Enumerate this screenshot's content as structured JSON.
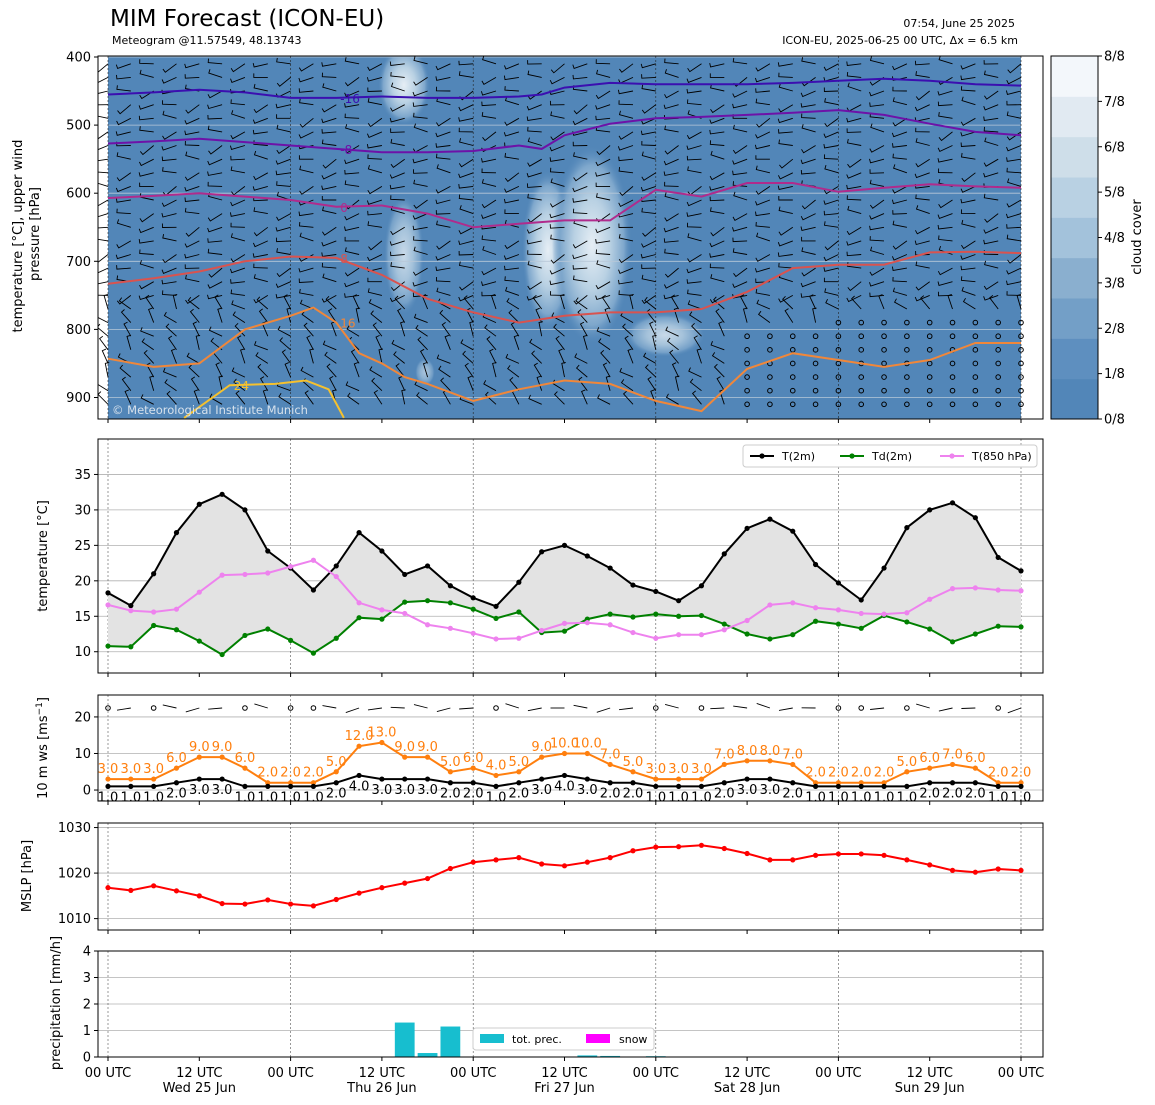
{
  "header": {
    "title": "MIM Forecast (ICON-EU)",
    "subtitle": "Meteogram @11.57549, 48.13743",
    "init_time": "07:54, June 25 2025",
    "model_info": "ICON-EU, 2025-06-25 00 UTC, Δx = 6.5 km",
    "copyright": "© Meteorological Institute Munich"
  },
  "colors": {
    "cloud_base": "#5085b8",
    "t2m": "#000000",
    "td2m": "#008000",
    "t850": "#ee82ee",
    "ws": "#ff7f0e",
    "mslp": "#ff0000",
    "precip": "#17becf",
    "snow": "#ff00ff",
    "fill": "#e3e3e3"
  },
  "x_axis": {
    "ticks": [
      "00 UTC",
      "12 UTC",
      "00 UTC",
      "12 UTC",
      "00 UTC",
      "12 UTC",
      "00 UTC",
      "12 UTC",
      "00 UTC",
      "12 UTC",
      "00 UTC"
    ],
    "tick_hours": [
      0,
      12,
      24,
      36,
      48,
      60,
      72,
      84,
      96,
      108,
      120
    ],
    "days": [
      "Wed 25 Jun",
      "Thu 26 Jun",
      "Fri 27 Jun",
      "Sat 28 Jun",
      "Sun 29 Jun"
    ],
    "day_hours": [
      12,
      36,
      60,
      84,
      108
    ],
    "xlim": [
      0,
      120
    ]
  },
  "chart_data": [
    {
      "type": "heatmap",
      "panel": "upper_air",
      "ylabel": "temperature [$^\\circ$C], upper wind\npressure [hPa]",
      "yticks": [
        400,
        500,
        600,
        700,
        800,
        900
      ],
      "ylim": [
        930,
        400
      ],
      "colorbar_label": "cloud cover",
      "colorbar_ticks": [
        "0/8",
        "1/8",
        "2/8",
        "3/8",
        "4/8",
        "5/8",
        "6/8",
        "7/8",
        "8/8"
      ],
      "colorbar_colors": [
        "#5286b8",
        "#5e8fbf",
        "#739fc7",
        "#8aafcf",
        "#a3c2db",
        "#b9d1e3",
        "#cedee9",
        "#e1eaf2",
        "#f3f7fb"
      ],
      "contour_labels": [
        "-16",
        "-8",
        "0",
        "8",
        "16",
        "24"
      ],
      "contours": [
        {
          "level": -16,
          "color": "#3b0fb0",
          "x": [
            0,
            6,
            12,
            18,
            24,
            30,
            36,
            42,
            48,
            54,
            57,
            60,
            66,
            72,
            78,
            84,
            90,
            96,
            102,
            108,
            114,
            120
          ],
          "p": [
            455,
            452,
            448,
            452,
            460,
            460,
            458,
            460,
            460,
            458,
            455,
            445,
            438,
            440,
            440,
            440,
            438,
            435,
            432,
            435,
            440,
            442
          ]
        },
        {
          "level": -8,
          "color": "#6d12a8",
          "x": [
            0,
            6,
            12,
            18,
            24,
            30,
            36,
            42,
            48,
            54,
            57,
            60,
            66,
            72,
            78,
            84,
            90,
            96,
            102,
            108,
            114,
            120
          ],
          "p": [
            527,
            524,
            520,
            525,
            530,
            535,
            540,
            540,
            538,
            530,
            535,
            515,
            498,
            490,
            488,
            485,
            482,
            478,
            485,
            498,
            510,
            515
          ]
        },
        {
          "level": 0,
          "color": "#b02b8c",
          "x": [
            0,
            6,
            12,
            18,
            24,
            30,
            36,
            42,
            48,
            54,
            60,
            66,
            72,
            78,
            84,
            90,
            96,
            102,
            108,
            114,
            120
          ],
          "p": [
            607,
            604,
            600,
            605,
            610,
            620,
            618,
            630,
            650,
            645,
            640,
            640,
            595,
            605,
            585,
            585,
            598,
            592,
            587,
            590,
            592
          ]
        },
        {
          "level": 8,
          "color": "#d9534f",
          "x": [
            0,
            6,
            12,
            18,
            24,
            30,
            36,
            42,
            48,
            54,
            60,
            66,
            72,
            78,
            84,
            90,
            96,
            102,
            108,
            114,
            120
          ],
          "p": [
            733,
            725,
            715,
            700,
            693,
            695,
            720,
            755,
            775,
            790,
            780,
            775,
            775,
            770,
            745,
            710,
            705,
            705,
            687,
            686,
            688
          ]
        },
        {
          "level": 16,
          "color": "#f0873a",
          "x": [
            0,
            6,
            12,
            18,
            24,
            27,
            30,
            33,
            36,
            39,
            42,
            48,
            54,
            60,
            66,
            72,
            78,
            84,
            90,
            96,
            102,
            108,
            114,
            120
          ],
          "p": [
            843,
            855,
            850,
            800,
            780,
            768,
            790,
            835,
            850,
            870,
            880,
            905,
            888,
            875,
            880,
            905,
            920,
            858,
            835,
            845,
            855,
            845,
            820,
            820
          ]
        },
        {
          "level": 24,
          "color": "#f5c12e",
          "x": [
            10,
            16,
            22,
            26,
            29,
            31
          ],
          "p": [
            930,
            882,
            880,
            875,
            888,
            930
          ]
        }
      ]
    },
    {
      "type": "line",
      "panel": "temperature",
      "ylabel": "temperature [$^\\circ$C]",
      "yticks": [
        10,
        15,
        20,
        25,
        30,
        35
      ],
      "ylim": [
        7,
        40
      ],
      "legend": [
        "T(2m)",
        "Td(2m)",
        "T(850 hPa)"
      ],
      "legend_position": "top-right",
      "x": [
        0,
        3,
        6,
        9,
        12,
        15,
        18,
        21,
        24,
        27,
        30,
        33,
        36,
        39,
        42,
        45,
        48,
        51,
        54,
        57,
        60,
        63,
        66,
        69,
        72,
        75,
        78,
        81,
        84,
        87,
        90,
        93,
        96,
        99,
        102,
        105,
        108,
        111,
        114,
        117,
        120
      ],
      "series": [
        {
          "name": "T(2m)",
          "values": [
            18.3,
            16.5,
            21.0,
            26.8,
            30.8,
            32.2,
            30.0,
            24.2,
            21.8,
            18.7,
            22.1,
            26.8,
            24.2,
            20.9,
            22.1,
            19.3,
            17.6,
            16.4,
            19.8,
            24.1,
            25.0,
            23.5,
            21.8,
            19.4,
            18.5,
            17.2,
            19.3,
            23.8,
            27.4,
            28.7,
            27.0,
            22.3,
            19.7,
            17.3,
            21.8,
            27.5,
            30.0,
            31.0,
            28.9,
            23.3,
            21.4
          ]
        },
        {
          "name": "Td(2m)",
          "values": [
            10.8,
            10.7,
            13.7,
            13.1,
            11.5,
            9.6,
            12.3,
            13.2,
            11.6,
            9.8,
            11.9,
            14.8,
            14.6,
            17.0,
            17.2,
            16.9,
            16.0,
            14.7,
            15.6,
            12.7,
            12.9,
            14.6,
            15.3,
            14.9,
            15.3,
            15.0,
            15.1,
            13.9,
            12.5,
            11.8,
            12.4,
            14.3,
            13.9,
            13.3,
            15.1,
            14.2,
            13.2,
            11.4,
            12.5,
            13.6,
            13.5
          ]
        },
        {
          "name": "T(850 hPa)",
          "values": [
            16.6,
            15.8,
            15.6,
            16.0,
            18.4,
            20.8,
            20.9,
            21.1,
            22.0,
            22.9,
            20.6,
            16.9,
            15.9,
            15.4,
            13.8,
            13.3,
            12.6,
            11.8,
            11.9,
            13.0,
            14.0,
            14.1,
            13.8,
            12.7,
            11.9,
            12.4,
            12.4,
            13.1,
            14.4,
            16.6,
            16.9,
            16.2,
            15.9,
            15.4,
            15.3,
            15.5,
            17.4,
            18.9,
            19.0,
            18.7,
            18.6
          ]
        }
      ]
    },
    {
      "type": "line",
      "panel": "wind",
      "ylabel": "10 m ws [ms$^{-1}$]",
      "yticks": [
        0,
        10,
        20
      ],
      "ylim": [
        -3,
        26
      ],
      "x": [
        0,
        3,
        6,
        9,
        12,
        15,
        18,
        21,
        24,
        27,
        30,
        33,
        36,
        39,
        42,
        45,
        48,
        51,
        54,
        57,
        60,
        63,
        66,
        69,
        72,
        75,
        78,
        81,
        84,
        87,
        90,
        93,
        96,
        99,
        102,
        105,
        108,
        111,
        114,
        117,
        120
      ],
      "series": [
        {
          "name": "gust",
          "values": [
            3.0,
            3.0,
            3.0,
            6.0,
            9.0,
            9.0,
            6.0,
            2.0,
            2.0,
            2.0,
            5.0,
            12.0,
            13.0,
            9.0,
            9.0,
            5.0,
            6.0,
            4.0,
            5.0,
            9.0,
            10.0,
            10.0,
            7.0,
            5.0,
            3.0,
            3.0,
            3.0,
            7.0,
            8.0,
            8.0,
            7.0,
            2.0,
            2.0,
            2.0,
            2.0,
            5.0,
            6.0,
            7.0,
            6.0,
            2.0,
            2.0
          ]
        },
        {
          "name": "mean",
          "values": [
            1.0,
            1.0,
            1.0,
            2.0,
            3.0,
            3.0,
            1.0,
            1.0,
            1.0,
            1.0,
            2.0,
            4.0,
            3.0,
            3.0,
            3.0,
            2.0,
            2.0,
            1.0,
            2.0,
            3.0,
            4.0,
            3.0,
            2.0,
            2.0,
            1.0,
            1.0,
            1.0,
            2.0,
            3.0,
            3.0,
            2.0,
            1.0,
            1.0,
            1.0,
            1.0,
            1.0,
            2.0,
            2.0,
            2.0,
            1.0,
            1.0
          ]
        }
      ],
      "gust_labels": [
        "3.0",
        "3.0",
        "3.0",
        "6.0",
        "9.0",
        "9.0",
        "6.0",
        "2.0",
        "2.0",
        "2.0",
        "5.0",
        "12.0",
        "13.0",
        "9.0",
        "9.0",
        "5.0",
        "6.0",
        "4.0",
        "5.0",
        "9.0",
        "10.0",
        "10.0",
        "7.0",
        "5.0",
        "3.0",
        "3.0",
        "3.0",
        "7.0",
        "8.0",
        "8.0",
        "7.0",
        "2.0",
        "2.0",
        "2.0",
        "2.0",
        "5.0",
        "6.0",
        "7.0",
        "6.0",
        "2.0",
        "2.0"
      ],
      "mean_labels": [
        "1.0",
        "1.0",
        "1.0",
        "2.0",
        "3.0",
        "3.0",
        "1.0",
        "1.0",
        "1.0",
        "1.0",
        "2.0",
        "4.0",
        "3.0",
        "3.0",
        "3.0",
        "2.0",
        "2.0",
        "1.0",
        "2.0",
        "3.0",
        "4.0",
        "3.0",
        "2.0",
        "2.0",
        "1.0",
        "1.0",
        "1.0",
        "2.0",
        "3.0",
        "3.0",
        "2.0",
        "1.0",
        "1.0",
        "1.0",
        "1.0",
        "1.0",
        "2.0",
        "2.0",
        "2.0",
        "1.0",
        "1.0"
      ]
    },
    {
      "type": "line",
      "panel": "mslp",
      "ylabel": "MSLP [hPa]",
      "yticks": [
        1010,
        1020,
        1030
      ],
      "ylim": [
        1007.5,
        1031
      ],
      "x": [
        0,
        3,
        6,
        9,
        12,
        15,
        18,
        21,
        24,
        27,
        30,
        33,
        36,
        39,
        42,
        45,
        48,
        51,
        54,
        57,
        60,
        63,
        66,
        69,
        72,
        75,
        78,
        81,
        84,
        87,
        90,
        93,
        96,
        99,
        102,
        105,
        108,
        111,
        114,
        117,
        120
      ],
      "series": [
        {
          "name": "MSLP",
          "values": [
            1016.8,
            1016.2,
            1017.2,
            1016.1,
            1015.0,
            1013.3,
            1013.2,
            1014.1,
            1013.2,
            1012.8,
            1014.2,
            1015.6,
            1016.8,
            1017.8,
            1018.8,
            1021.0,
            1022.4,
            1022.9,
            1023.4,
            1022.0,
            1021.6,
            1022.4,
            1023.4,
            1024.9,
            1025.7,
            1025.8,
            1026.1,
            1025.4,
            1024.3,
            1022.9,
            1022.9,
            1023.9,
            1024.2,
            1024.2,
            1023.9,
            1022.9,
            1021.8,
            1020.6,
            1020.2,
            1020.9,
            1020.6
          ]
        }
      ]
    },
    {
      "type": "bar",
      "panel": "precipitation",
      "ylabel": "precipitation [mm/h]",
      "yticks": [
        0,
        1,
        2,
        3,
        4
      ],
      "ylim": [
        0,
        4
      ],
      "legend": [
        "tot. prec.",
        "snow"
      ],
      "legend_position": "bottom-center",
      "x": [
        39,
        42,
        45,
        63,
        66,
        72
      ],
      "series": [
        {
          "name": "tot. prec.",
          "values": [
            1.3,
            0.15,
            1.15,
            0.06,
            0.04,
            0.03
          ]
        },
        {
          "name": "snow",
          "values": [
            0,
            0,
            0,
            0,
            0,
            0
          ]
        }
      ]
    }
  ]
}
